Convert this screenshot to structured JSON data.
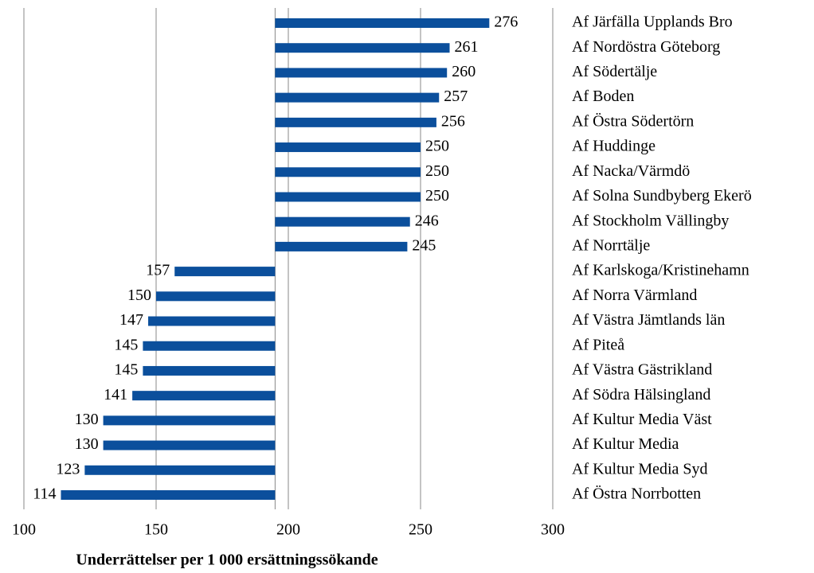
{
  "chart_data": {
    "type": "bar",
    "orientation": "horizontal",
    "x_label": "Underrättelser per 1 000 ersättningssökande",
    "categories": [
      "Af Järfälla Upplands Bro",
      "Af Nordöstra Göteborg",
      "Af Södertälje",
      "Af Boden",
      "Af Östra Södertörn",
      "Af Huddinge",
      "Af Nacka/Värmdö",
      "Af Solna Sundbyberg Ekerö",
      "Af Stockholm Vällingby",
      "Af Norrtälje",
      "Af Karlskoga/Kristinehamn",
      "Af Norra Värmland",
      "Af Västra Jämtlands län",
      "Af Piteå",
      "Af Västra Gästrikland",
      "Af Södra Hälsingland",
      "Af Kultur Media Väst",
      "Af Kultur Media",
      "Af Kultur Media Syd",
      "Af Östra Norrbotten"
    ],
    "values": [
      276,
      261,
      260,
      257,
      256,
      250,
      250,
      250,
      246,
      245,
      157,
      150,
      147,
      145,
      145,
      141,
      130,
      130,
      123,
      114
    ],
    "bar_base": 195,
    "color": "#0b4f9c",
    "xlim": [
      100,
      300
    ],
    "xticks": [
      100,
      150,
      200,
      250,
      300
    ],
    "grid": true
  }
}
